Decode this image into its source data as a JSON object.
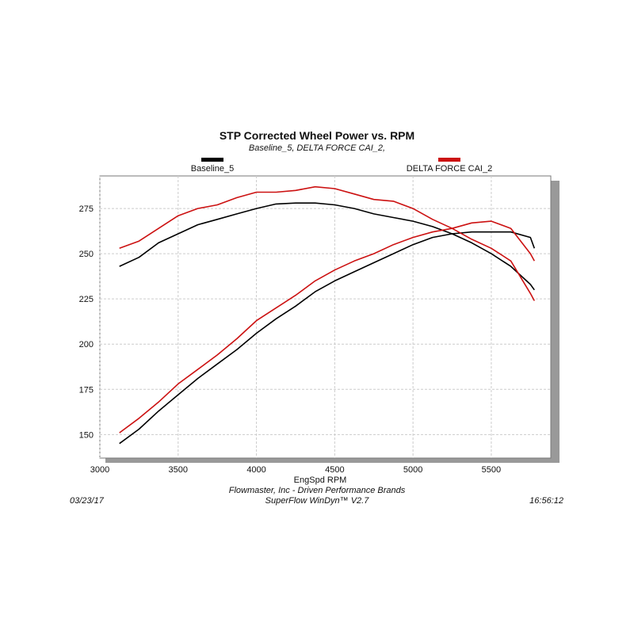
{
  "chart_data": {
    "type": "line",
    "title": "STP Corrected Wheel Power vs. RPM",
    "subtitle": "Baseline_5, DELTA FORCE CAI_2,",
    "x_label": "EngSpd  RPM",
    "footer_company": "Flowmaster, Inc - Driven Performance Brands",
    "footer_software": "SuperFlow WinDyn™ V2.7",
    "date": "03/23/17",
    "time": "16:56:12",
    "x": [
      3125,
      3250,
      3375,
      3500,
      3625,
      3750,
      3875,
      4000,
      4125,
      4250,
      4375,
      4500,
      4625,
      4750,
      4875,
      5000,
      5125,
      5250,
      5375,
      5500,
      5625,
      5750,
      5775
    ],
    "series": [
      {
        "name": "Baseline_5",
        "color": "#000000",
        "values": [
          243,
          248,
          256,
          261,
          266,
          269,
          272,
          275,
          277.5,
          278,
          278,
          277,
          275,
          272,
          270,
          268,
          265,
          261,
          256,
          250,
          243,
          233,
          230
        ],
        "values2": [
          145,
          153,
          163,
          172,
          181,
          189,
          197,
          206,
          214,
          221,
          229,
          235,
          240,
          245,
          250,
          255,
          259,
          261,
          262,
          262,
          262,
          259,
          253
        ]
      },
      {
        "name": "DELTA FORCE CAI_2",
        "color": "#cc1111",
        "values": [
          253,
          257,
          264,
          271,
          275,
          277,
          281,
          284,
          284,
          285,
          287,
          286,
          283,
          280,
          279,
          275,
          269,
          264,
          258,
          253,
          246,
          228,
          224
        ],
        "values2": [
          151,
          159,
          168,
          178,
          186,
          194,
          203,
          213,
          220,
          227,
          235,
          241,
          246,
          250,
          255,
          259,
          262,
          264,
          267,
          268,
          264,
          250,
          246
        ]
      }
    ],
    "xlim": [
      3000,
      5880
    ],
    "ylim": [
      137,
      293
    ],
    "xticks": [
      3000,
      3500,
      4000,
      4500,
      5000,
      5500
    ],
    "yticks": [
      150,
      175,
      200,
      225,
      250,
      275
    ],
    "grid": true
  }
}
